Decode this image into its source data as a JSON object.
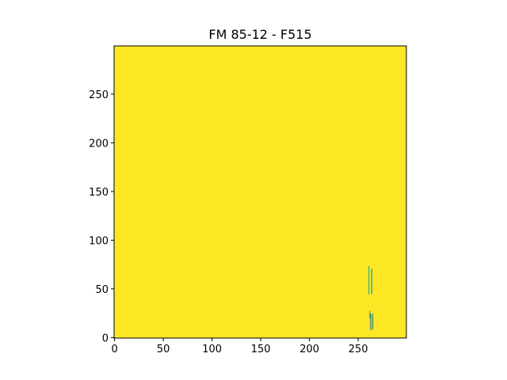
{
  "chart_data": {
    "type": "heatmap",
    "title": "FM 85-12 - F515",
    "xlabel": "",
    "ylabel": "",
    "xlim": [
      -0.5,
      299.5
    ],
    "ylim": [
      -0.5,
      299.5
    ],
    "x_ticks": [
      0,
      50,
      100,
      150,
      200,
      250
    ],
    "y_ticks": [
      0,
      50,
      100,
      150,
      200,
      250
    ],
    "grid": false,
    "colormap": "viridis",
    "background_value_color": "#fde725",
    "features": [
      {
        "x": 261,
        "y_min": 45,
        "y_max": 73,
        "color": "#35b779"
      },
      {
        "x": 264,
        "y_min": 45,
        "y_max": 70,
        "color": "#1f9e89"
      },
      {
        "x": 262,
        "y_min": 20,
        "y_max": 27,
        "color": "#35b779"
      },
      {
        "x": 263,
        "y_min": 8,
        "y_max": 24,
        "color": "#31688e"
      },
      {
        "x": 265,
        "y_min": 9,
        "y_max": 24,
        "color": "#21918c"
      }
    ]
  }
}
